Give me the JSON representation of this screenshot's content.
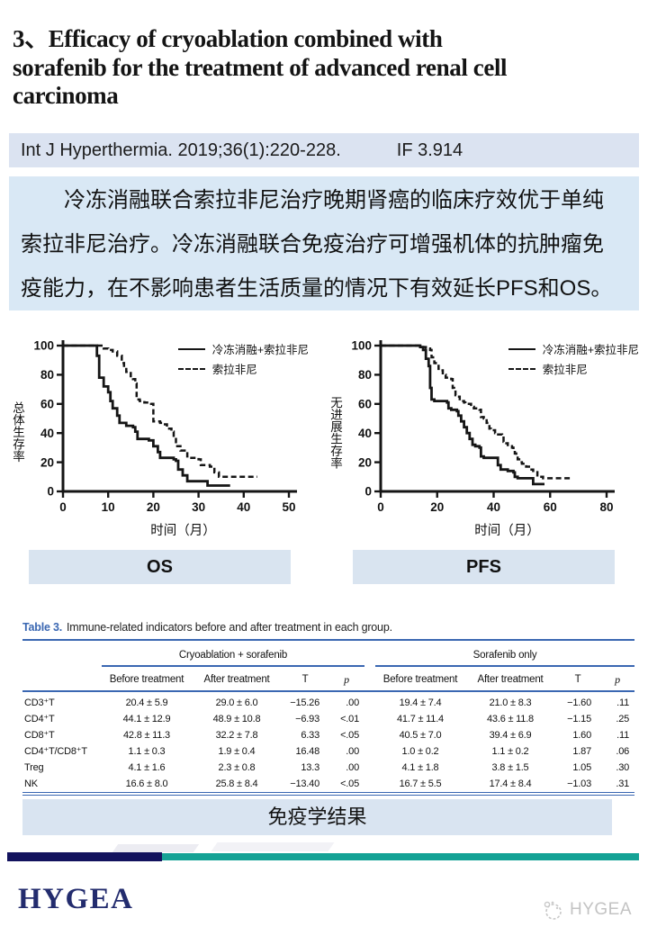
{
  "slide": {
    "title": "3、Efficacy of cryoablation combined with\nsorafenib for the treatment of advanced renal cell\ncarcinoma",
    "citation": "Int J Hyperthermia. 2019;36(1):220-228.",
    "impact_factor": "IF 3.914",
    "summary": "　　冷冻消融联合索拉非尼治疗晚期肾癌的临床疗效优于单纯\n索拉非尼治疗。冷冻消融联合免疫治疗可增强机体的抗肿瘤免\n疫能力，在不影响患者生活质量的情况下有效延长PFS和OS。"
  },
  "labels": {
    "os_caption": "OS",
    "pfs_caption": "PFS",
    "immunology_caption": "免疫学结果"
  },
  "chart_data": [
    {
      "type": "line",
      "name": "OS",
      "xlabel": "时间（月）",
      "ylabel": "总体生存率",
      "xlim": [
        0,
        50
      ],
      "ylim": [
        0,
        100
      ],
      "xticks": [
        0,
        10,
        20,
        30,
        40,
        50
      ],
      "yticks": [
        0,
        20,
        40,
        60,
        80,
        100
      ],
      "legend_position": "top-right",
      "series": [
        {
          "name": "冷冻消融+索拉非尼",
          "dashed": false,
          "points": [
            [
              0,
              100
            ],
            [
              7,
              100
            ],
            [
              7.5,
              93
            ],
            [
              8,
              78
            ],
            [
              9,
              72
            ],
            [
              10,
              68
            ],
            [
              10.5,
              62
            ],
            [
              11,
              57
            ],
            [
              12,
              52
            ],
            [
              12.5,
              47
            ],
            [
              14,
              45
            ],
            [
              15.5,
              44
            ],
            [
              16,
              41
            ],
            [
              16.5,
              36
            ],
            [
              19,
              35
            ],
            [
              20,
              31
            ],
            [
              21,
              27
            ],
            [
              21.5,
              23
            ],
            [
              24.5,
              22
            ],
            [
              25,
              21
            ],
            [
              25.5,
              15
            ],
            [
              26.5,
              11
            ],
            [
              27.5,
              7
            ],
            [
              31.5,
              7
            ],
            [
              32,
              4
            ],
            [
              37,
              4
            ]
          ]
        },
        {
          "name": "索拉非尼",
          "dashed": true,
          "points": [
            [
              0,
              100
            ],
            [
              8,
              100
            ],
            [
              9,
              98
            ],
            [
              10,
              97
            ],
            [
              11,
              96
            ],
            [
              12,
              93
            ],
            [
              13,
              88
            ],
            [
              13.5,
              85
            ],
            [
              14,
              82
            ],
            [
              15,
              78
            ],
            [
              15.5,
              77
            ],
            [
              16,
              74
            ],
            [
              16.3,
              63
            ],
            [
              17,
              62
            ],
            [
              18,
              61
            ],
            [
              19.5,
              60
            ],
            [
              20,
              48
            ],
            [
              21.5,
              47
            ],
            [
              22,
              46
            ],
            [
              23,
              43
            ],
            [
              24,
              41
            ],
            [
              24.5,
              37
            ],
            [
              25,
              31
            ],
            [
              26,
              28
            ],
            [
              27.5,
              24
            ],
            [
              28,
              23
            ],
            [
              30,
              22
            ],
            [
              30.5,
              18
            ],
            [
              32.5,
              17
            ],
            [
              33.5,
              13
            ],
            [
              34.5,
              10
            ],
            [
              43,
              10
            ]
          ]
        }
      ]
    },
    {
      "type": "line",
      "name": "PFS",
      "xlabel": "时间（月）",
      "ylabel": "无进展生存率",
      "xlim": [
        0,
        80
      ],
      "ylim": [
        0,
        100
      ],
      "xticks": [
        0,
        20,
        40,
        60,
        80
      ],
      "yticks": [
        0,
        20,
        40,
        60,
        80,
        100
      ],
      "legend_position": "top-right",
      "series": [
        {
          "name": "冷冻消融+索拉非尼",
          "dashed": false,
          "points": [
            [
              0,
              100
            ],
            [
              13,
              100
            ],
            [
              14,
              99
            ],
            [
              15,
              97
            ],
            [
              16,
              91
            ],
            [
              17,
              86
            ],
            [
              17.5,
              71
            ],
            [
              18,
              63
            ],
            [
              19,
              62
            ],
            [
              23.5,
              61
            ],
            [
              24,
              57
            ],
            [
              25,
              56
            ],
            [
              27,
              55
            ],
            [
              27.5,
              52
            ],
            [
              28.5,
              48
            ],
            [
              29.5,
              44
            ],
            [
              30.5,
              40
            ],
            [
              31.5,
              36
            ],
            [
              32.5,
              32
            ],
            [
              33.5,
              31
            ],
            [
              35,
              30
            ],
            [
              35.5,
              24
            ],
            [
              36.5,
              23
            ],
            [
              41,
              23
            ],
            [
              41.5,
              18
            ],
            [
              42.5,
              15
            ],
            [
              45,
              14
            ],
            [
              47,
              13
            ],
            [
              47.5,
              10
            ],
            [
              48.5,
              9
            ],
            [
              53.5,
              9
            ],
            [
              54,
              5
            ],
            [
              58,
              5
            ]
          ]
        },
        {
          "name": "索拉非尼",
          "dashed": true,
          "points": [
            [
              0,
              100
            ],
            [
              14,
              100
            ],
            [
              15,
              99
            ],
            [
              16,
              98
            ],
            [
              17.5,
              97
            ],
            [
              18,
              92
            ],
            [
              19,
              88
            ],
            [
              19.5,
              87
            ],
            [
              20.5,
              84
            ],
            [
              21,
              83
            ],
            [
              22,
              80
            ],
            [
              23,
              78
            ],
            [
              25,
              77
            ],
            [
              25.5,
              71
            ],
            [
              26,
              70
            ],
            [
              26.5,
              66
            ],
            [
              27,
              65
            ],
            [
              28,
              62
            ],
            [
              29.5,
              61
            ],
            [
              30,
              60
            ],
            [
              32,
              58
            ],
            [
              33,
              57
            ],
            [
              35,
              56
            ],
            [
              35.5,
              51
            ],
            [
              36.5,
              50
            ],
            [
              37.5,
              47
            ],
            [
              38.5,
              43
            ],
            [
              39,
              42
            ],
            [
              40.5,
              40
            ],
            [
              41,
              39
            ],
            [
              43,
              38
            ],
            [
              43.5,
              34
            ],
            [
              44.5,
              33
            ],
            [
              45,
              31
            ],
            [
              46.5,
              30
            ],
            [
              47,
              29
            ],
            [
              47.5,
              26
            ],
            [
              48,
              25
            ],
            [
              48.5,
              22
            ],
            [
              49.5,
              20
            ],
            [
              50,
              19
            ],
            [
              51.5,
              17
            ],
            [
              53,
              15
            ],
            [
              54,
              14
            ],
            [
              55.5,
              11
            ],
            [
              56,
              10
            ],
            [
              57.5,
              9
            ],
            [
              67,
              9
            ]
          ]
        }
      ]
    }
  ],
  "table": {
    "title_prefix": "Table 3.",
    "title": "Immune-related indicators before and after treatment in each group.",
    "groups": [
      "Cryoablation + sorafenib",
      "Sorafenib only"
    ],
    "subheaders": [
      "Before treatment",
      "After treatment",
      "T",
      "p"
    ],
    "rows": [
      {
        "label": "CD3⁺T",
        "g1": [
          "20.4 ± 5.9",
          "29.0 ± 6.0",
          "−15.26",
          ".00"
        ],
        "g2": [
          "19.4 ± 7.4",
          "21.0 ± 8.3",
          "−1.60",
          ".11"
        ]
      },
      {
        "label": "CD4⁺T",
        "g1": [
          "44.1 ± 12.9",
          "48.9 ± 10.8",
          "−6.93",
          "<.01"
        ],
        "g2": [
          "41.7 ± 11.4",
          "43.6 ± 11.8",
          "−1.15",
          ".25"
        ]
      },
      {
        "label": "CD8⁺T",
        "g1": [
          "42.8 ± 11.3",
          "32.2 ± 7.8",
          "6.33",
          "<.05"
        ],
        "g2": [
          "40.5 ± 7.0",
          "39.4 ± 6.9",
          "1.60",
          ".11"
        ]
      },
      {
        "label": "CD4⁺T/CD8⁺T",
        "g1": [
          "1.1 ± 0.3",
          "1.9 ± 0.4",
          "16.48",
          ".00"
        ],
        "g2": [
          "1.0 ± 0.2",
          "1.1 ± 0.2",
          "1.87",
          ".06"
        ]
      },
      {
        "label": "Treg",
        "g1": [
          "4.1 ± 1.6",
          "2.3 ± 0.8",
          "13.3",
          ".00"
        ],
        "g2": [
          "4.1 ± 1.8",
          "3.8 ± 1.5",
          "1.05",
          ".30"
        ]
      },
      {
        "label": "NK",
        "g1": [
          "16.6 ± 8.0",
          "25.8 ± 8.4",
          "−13.40",
          "<.05"
        ],
        "g2": [
          "16.7 ± 5.5",
          "17.4 ± 8.4",
          "−1.03",
          ".31"
        ]
      }
    ]
  },
  "footer": {
    "logo_text": "HYGEA",
    "watermark_text": "HYGEA"
  },
  "colors": {
    "accent_table_blue": "#3a67b2",
    "citation_bar_bg": "#dbe3f1",
    "summary_bg": "#d9e8f5",
    "caption_bar_bg": "#d9e4f0",
    "divider_navy": "#13135e",
    "divider_teal": "#14a295",
    "logo_navy": "#232c6e",
    "watermark_gray": "#c3c3c3"
  }
}
